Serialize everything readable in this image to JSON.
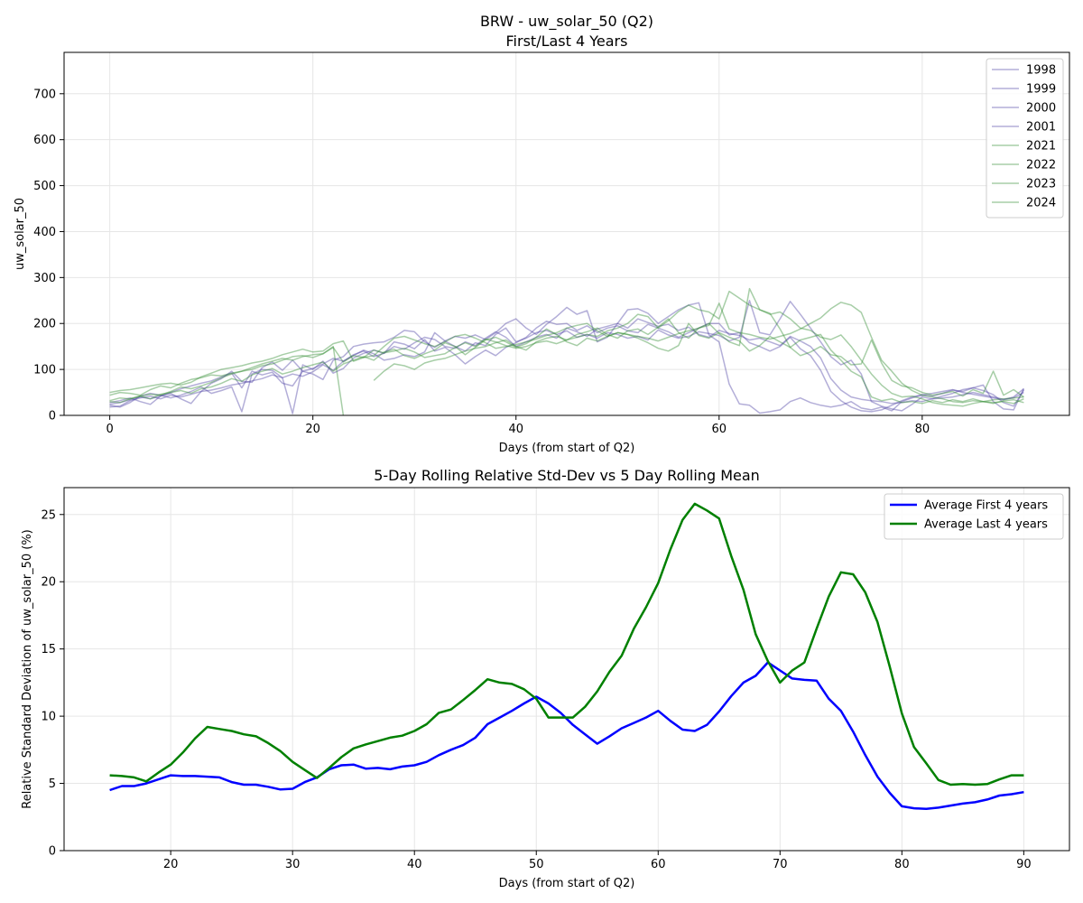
{
  "figure": {
    "colors": {
      "first_years": "#4a3fa3",
      "last_years": "#2e8b2e",
      "avg_first": "#0000ff",
      "avg_last": "#008000"
    }
  },
  "chart_data": [
    {
      "type": "line",
      "title": "BRW - uw_solar_50 (Q2)",
      "subtitle": "First/Last 4 Years",
      "xlabel": "Days (from start of Q2)",
      "ylabel": "uw_solar_50",
      "xlim": [
        -4.5,
        94.5
      ],
      "ylim": [
        0,
        790
      ],
      "xticks": [
        0,
        20,
        40,
        60,
        80
      ],
      "yticks": [
        0,
        100,
        200,
        300,
        400,
        500,
        600,
        700
      ],
      "grid": true,
      "legend_position": "top-right",
      "series": [
        {
          "name": "1998",
          "group": "first",
          "values": [
            18,
            20,
            32,
            38,
            42,
            36,
            44,
            40,
            46,
            52,
            55,
            60,
            66,
            70,
            75,
            80,
            88,
            82,
            90,
            85,
            95,
            110,
            98,
            118,
            132,
            140,
            128,
            135,
            150,
            144,
            158,
            170,
            165,
            150,
            146,
            160,
            152,
            168,
            182,
            170,
            150,
            160,
            170,
            176,
            168,
            190,
            182,
            172,
            188,
            194,
            200,
            190,
            210,
            202,
            194,
            198,
            185,
            192,
            176,
            170,
            185,
            178,
            174,
            164,
            168,
            160,
            152,
            172,
            162,
            150,
            125,
            80,
            55,
            40,
            35,
            32,
            30,
            26,
            28,
            32,
            30,
            36,
            38,
            40,
            45,
            50,
            45,
            40,
            35,
            38,
            50
          ]
        },
        {
          "name": "1999",
          "group": "first",
          "values": [
            22,
            18,
            28,
            42,
            48,
            44,
            38,
            44,
            52,
            62,
            48,
            54,
            62,
            8,
            90,
            100,
            98,
            82,
            4,
            110,
            100,
            118,
            92,
            102,
            125,
            135,
            142,
            135,
            160,
            155,
            145,
            165,
            140,
            148,
            132,
            112,
            128,
            142,
            130,
            148,
            158,
            170,
            190,
            205,
            198,
            200,
            185,
            195,
            180,
            190,
            195,
            184,
            180,
            198,
            190,
            182,
            170,
            180,
            190,
            200,
            200,
            175,
            180,
            158,
            150,
            140,
            150,
            170,
            145,
            130,
            98,
            52,
            32,
            18,
            10,
            8,
            12,
            22,
            32,
            40,
            45,
            48,
            52,
            56,
            50,
            46,
            42,
            38,
            34,
            40,
            58
          ]
        },
        {
          "name": "2000",
          "group": "first",
          "values": [
            28,
            32,
            38,
            30,
            24,
            42,
            48,
            36,
            26,
            52,
            70,
            80,
            96,
            74,
            72,
            104,
            116,
            98,
            120,
            96,
            90,
            78,
            120,
            128,
            150,
            155,
            158,
            160,
            170,
            185,
            182,
            160,
            148,
            162,
            172,
            168,
            175,
            165,
            180,
            200,
            210,
            190,
            176,
            198,
            215,
            235,
            220,
            228,
            160,
            170,
            200,
            230,
            232,
            222,
            200,
            215,
            230,
            240,
            245,
            175,
            160,
            68,
            25,
            22,
            5,
            8,
            12,
            30,
            38,
            28,
            22,
            18,
            22,
            30,
            16,
            12,
            18,
            10,
            30,
            38,
            44,
            42,
            48,
            55,
            52,
            60,
            66,
            30,
            14,
            12,
            58
          ]
        },
        {
          "name": "2001",
          "group": "first",
          "values": [
            24,
            28,
            34,
            40,
            36,
            42,
            50,
            58,
            64,
            70,
            75,
            84,
            92,
            60,
            96,
            88,
            94,
            70,
            64,
            96,
            102,
            112,
            124,
            118,
            130,
            142,
            134,
            120,
            124,
            132,
            128,
            138,
            180,
            162,
            150,
            140,
            158,
            152,
            176,
            190,
            160,
            168,
            180,
            185,
            176,
            184,
            170,
            176,
            168,
            180,
            176,
            168,
            172,
            164,
            186,
            175,
            168,
            172,
            182,
            178,
            174,
            162,
            170,
            250,
            180,
            175,
            210,
            248,
            220,
            190,
            160,
            128,
            110,
            120,
            90,
            30,
            20,
            14,
            10,
            24,
            40,
            36,
            42,
            48,
            56,
            60,
            54,
            45,
            28,
            20,
            55
          ]
        },
        {
          "name": "2021",
          "group": "last",
          "values": [
            32,
            38,
            36,
            42,
            46,
            44,
            52,
            62,
            58,
            64,
            72,
            82,
            90,
            96,
            104,
            112,
            118,
            124,
            120,
            128,
            132,
            134,
            148,
            116,
            130,
            126,
            142,
            136,
            140,
            146,
            138,
            126,
            130,
            134,
            148,
            158,
            150,
            166,
            160,
            152,
            146,
            150,
            158,
            162,
            156,
            164,
            170,
            176,
            172,
            184,
            190,
            200,
            220,
            215,
            190,
            206,
            226,
            240,
            230,
            225,
            210,
            270,
            255,
            240,
            230,
            220,
            225,
            210,
            190,
            185,
            170,
            165,
            175,
            150,
            120,
            90,
            66,
            48,
            40,
            42,
            36,
            28,
            24,
            22,
            20,
            26,
            30,
            26,
            32,
            34,
            28
          ]
        },
        {
          "name": "2022",
          "group": "last",
          "values": [
            30,
            28,
            36,
            42,
            36,
            46,
            50,
            54,
            48,
            58,
            62,
            70,
            80,
            74,
            88,
            96,
            102,
            90,
            96,
            104,
            110,
            116,
            96,
            112,
            120,
            128,
            120,
            138,
            144,
            130,
            124,
            134,
            142,
            158,
            150,
            132,
            148,
            164,
            170,
            160,
            148,
            156,
            170,
            188,
            176,
            160,
            152,
            168,
            162,
            172,
            180,
            176,
            168,
            158,
            146,
            140,
            152,
            200,
            174,
            168,
            180,
            170,
            162,
            140,
            152,
            172,
            160,
            148,
            164,
            170,
            176,
            142,
            120,
            96,
            84,
            40,
            32,
            36,
            28,
            30,
            26,
            32,
            28,
            34,
            30,
            36,
            30,
            28,
            30,
            26,
            36
          ]
        },
        {
          "name": "2023",
          "group": "last",
          "values": [
            44,
            50,
            48,
            44,
            56,
            64,
            60,
            70,
            78,
            82,
            88,
            86,
            92,
            96,
            100,
            108,
            112,
            120,
            128,
            130,
            126,
            134,
            150,
            0,
            null,
            null,
            76,
            96,
            112,
            108,
            100,
            114,
            120,
            124,
            132,
            140,
            146,
            150,
            158,
            164,
            150,
            142,
            160,
            168,
            172,
            164,
            176,
            182,
            190,
            176,
            168,
            184,
            188,
            176,
            192,
            210,
            180,
            168,
            190,
            200,
            178,
            160,
            152,
            276,
            230,
            222,
            188,
            148,
            130,
            138,
            150,
            132,
            128,
            110,
            112,
            164,
            114,
            76,
            64,
            60,
            50,
            44,
            48,
            52,
            42,
            56,
            48,
            96,
            44,
            56,
            40
          ]
        },
        {
          "name": "2024",
          "group": "last",
          "values": [
            50,
            54,
            56,
            60,
            64,
            68,
            70,
            66,
            72,
            84,
            92,
            100,
            104,
            108,
            114,
            118,
            124,
            132,
            138,
            144,
            138,
            140,
            156,
            162,
            118,
            126,
            130,
            150,
            168,
            172,
            164,
            156,
            150,
            160,
            172,
            176,
            168,
            158,
            146,
            150,
            154,
            160,
            166,
            174,
            180,
            190,
            196,
            200,
            184,
            172,
            180,
            176,
            172,
            168,
            162,
            170,
            178,
            184,
            190,
            196,
            244,
            188,
            180,
            176,
            170,
            166,
            172,
            178,
            188,
            200,
            212,
            232,
            246,
            240,
            224,
            170,
            120,
            96,
            70,
            54,
            44,
            40,
            36,
            30,
            28,
            32,
            30,
            34,
            36,
            38,
            40
          ]
        }
      ]
    },
    {
      "type": "line",
      "title": "5-Day Rolling Relative Std-Dev vs 5 Day Rolling Mean",
      "xlabel": "Days (from start of Q2)",
      "ylabel": "Relative Standard Deviation of uw_solar_50 (%)",
      "xlim": [
        11.25,
        93.75
      ],
      "ylim": [
        0,
        27.0
      ],
      "xticks": [
        20,
        30,
        40,
        50,
        60,
        70,
        80,
        90
      ],
      "yticks": [
        0,
        5,
        10,
        15,
        20,
        25
      ],
      "grid": true,
      "legend_position": "top-right",
      "x": [
        15,
        16,
        17,
        18,
        19,
        20,
        21,
        22,
        23,
        24,
        25,
        26,
        27,
        28,
        29,
        30,
        31,
        32,
        33,
        34,
        35,
        36,
        37,
        38,
        39,
        40,
        41,
        42,
        43,
        44,
        45,
        46,
        47,
        48,
        49,
        50,
        51,
        52,
        53,
        54,
        55,
        56,
        57,
        58,
        59,
        60,
        61,
        62,
        63,
        64,
        65,
        66,
        67,
        68,
        69,
        70,
        71,
        72,
        73,
        74,
        75,
        76,
        77,
        78,
        79,
        80,
        81,
        82,
        83,
        84,
        85,
        86,
        87,
        88,
        89,
        90
      ],
      "series": [
        {
          "name": "Average First 4 years",
          "values": [
            4.5,
            4.8,
            4.8,
            5.0,
            5.3,
            5.6,
            5.55,
            5.55,
            5.5,
            5.45,
            5.1,
            4.9,
            4.9,
            4.75,
            4.55,
            4.6,
            5.1,
            5.45,
            6.05,
            6.35,
            6.4,
            6.1,
            6.15,
            6.05,
            6.25,
            6.35,
            6.6,
            7.1,
            7.5,
            7.85,
            8.4,
            9.4,
            9.9,
            10.4,
            10.95,
            11.45,
            10.95,
            10.25,
            9.35,
            8.65,
            7.95,
            8.5,
            9.1,
            9.5,
            9.9,
            10.4,
            9.65,
            9.0,
            8.9,
            9.35,
            10.35,
            11.5,
            12.5,
            13.0,
            14.0,
            13.4,
            12.8,
            12.7,
            12.65,
            11.3,
            10.4,
            8.85,
            7.1,
            5.5,
            4.3,
            3.3,
            3.15,
            3.1,
            3.2,
            3.35,
            3.5,
            3.6,
            3.8,
            4.1,
            4.2,
            4.35
          ]
        },
        {
          "name": "Average Last 4 years",
          "values": [
            5.6,
            5.55,
            5.45,
            5.15,
            5.8,
            6.4,
            7.3,
            8.35,
            9.2,
            9.05,
            8.9,
            8.65,
            8.5,
            8.0,
            7.4,
            6.6,
            6.0,
            5.4,
            6.15,
            6.95,
            7.6,
            7.9,
            8.15,
            8.4,
            8.55,
            8.9,
            9.4,
            10.25,
            10.5,
            11.2,
            11.95,
            12.75,
            12.5,
            12.4,
            12.0,
            11.3,
            9.9,
            9.9,
            9.9,
            10.7,
            11.85,
            13.3,
            14.5,
            16.5,
            18.1,
            19.9,
            22.4,
            24.6,
            25.8,
            25.3,
            24.7,
            21.9,
            19.4,
            16.1,
            14.1,
            12.5,
            13.4,
            14.0,
            16.5,
            18.9,
            20.7,
            20.55,
            19.2,
            17.0,
            13.7,
            10.2,
            7.7,
            6.5,
            5.25,
            4.9,
            4.95,
            4.9,
            4.95,
            5.3,
            5.6,
            5.6
          ]
        }
      ]
    }
  ]
}
